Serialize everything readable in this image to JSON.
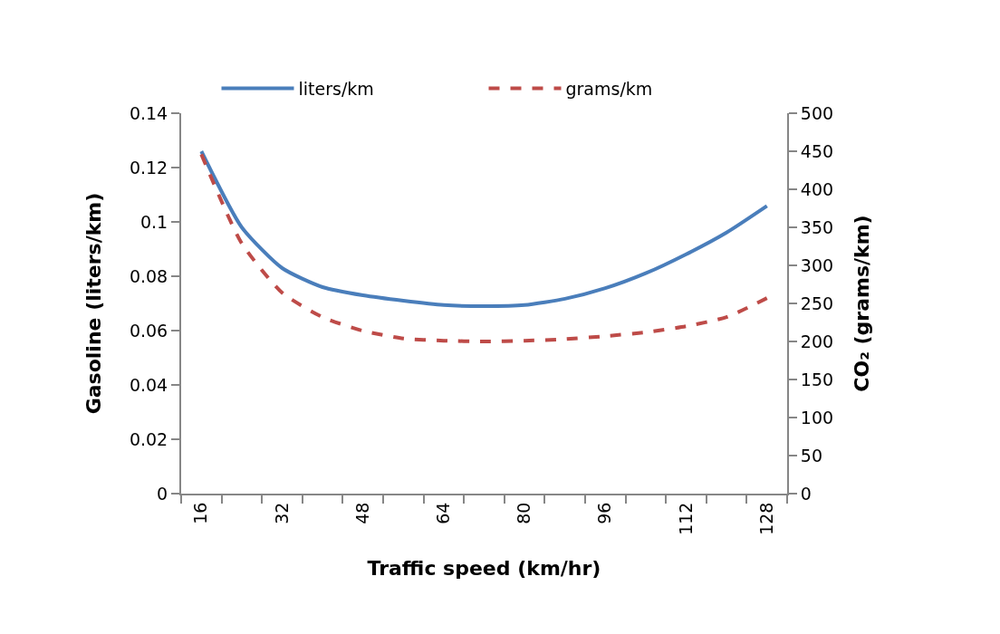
{
  "chart_data": {
    "type": "line",
    "xlabel": "Traffic speed (km/hr)",
    "ylabel": "Gasoline (liters/km)",
    "y2label": "CO₂ (grams/km)",
    "categories": [
      "16",
      null,
      "32",
      null,
      "48",
      null,
      "64",
      null,
      "80",
      null,
      "96",
      null,
      "112",
      null,
      "128"
    ],
    "series": [
      {
        "name": "liters/km",
        "color": "#4a7ebb",
        "line_style": "solid",
        "values": [
          0.126,
          0.098,
          0.083,
          0.076,
          0.073,
          0.071,
          0.0694,
          0.069,
          0.0694,
          0.0717,
          0.0756,
          0.0811,
          0.0881,
          0.0961,
          0.1059
        ]
      },
      {
        "name": "grams/km",
        "color": "#be4b48",
        "line_style": "dashed",
        "axis": "y2",
        "values": [
          446,
          329,
          264,
          232,
          214,
          204,
          201,
          200,
          201,
          203,
          207,
          212,
          220,
          232,
          257
        ]
      }
    ],
    "ylim": [
      0,
      0.14
    ],
    "yticks": [
      0,
      0.02,
      0.04,
      0.06,
      0.08,
      0.1,
      0.12,
      0.14
    ],
    "y2lim": [
      0,
      500
    ],
    "y2ticks": [
      0,
      50,
      100,
      150,
      200,
      250,
      300,
      350,
      400,
      450,
      500
    ],
    "legend": "top",
    "marker": "none"
  }
}
